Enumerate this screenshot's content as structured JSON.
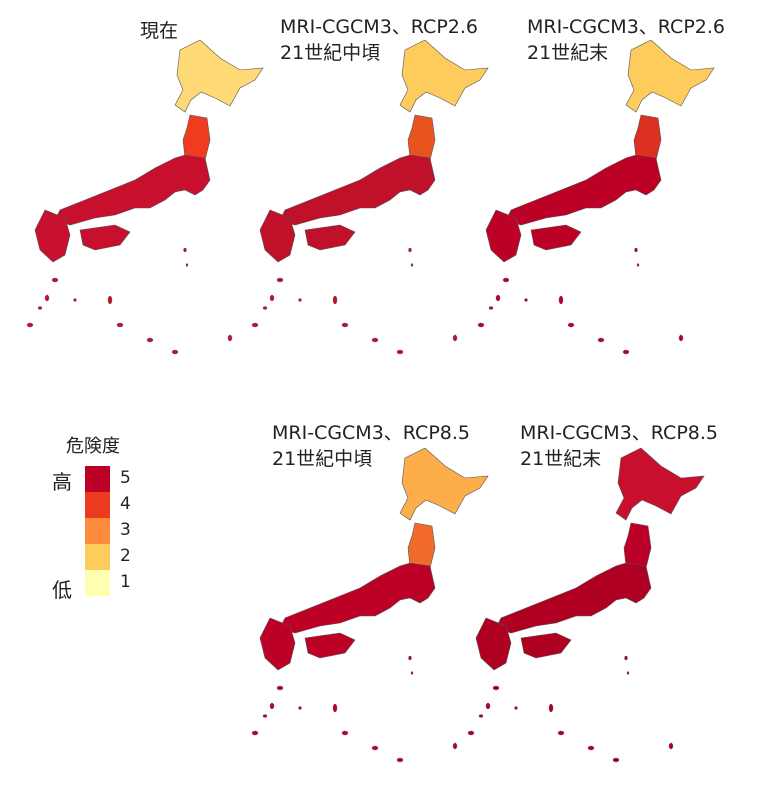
{
  "panels": [
    {
      "title_line1": "現在",
      "title_line2": "",
      "hokkaido": "#fed976",
      "north": "#f03b20",
      "body": "#c8102e"
    },
    {
      "title_line1": "MRI-CGCM3、RCP2.6",
      "title_line2": "21世紀中頃",
      "hokkaido": "#fecc5c",
      "north": "#e8541f",
      "body": "#c0102a"
    },
    {
      "title_line1": "MRI-CGCM3、RCP2.6",
      "title_line2": "21世紀末",
      "hokkaido": "#fecc5c",
      "north": "#dc3020",
      "body": "#bd0026"
    },
    {
      "title_line1": "MRI-CGCM3、RCP8.5",
      "title_line2": "21世紀中頃",
      "hokkaido": "#fdae4b",
      "north": "#f26a2a",
      "body": "#bd0026"
    },
    {
      "title_line1": "MRI-CGCM3、RCP8.5",
      "title_line2": "21世紀末",
      "hokkaido": "#c8102e",
      "north": "#bd0026",
      "body": "#b00022"
    }
  ],
  "legend": {
    "title": "危険度",
    "high_label": "高",
    "low_label": "低",
    "classes": [
      {
        "value": "5",
        "color": "#bd0026"
      },
      {
        "value": "4",
        "color": "#ec3a20"
      },
      {
        "value": "3",
        "color": "#fd8d3c"
      },
      {
        "value": "2",
        "color": "#fecc5c"
      },
      {
        "value": "1",
        "color": "#ffffb2"
      }
    ]
  }
}
